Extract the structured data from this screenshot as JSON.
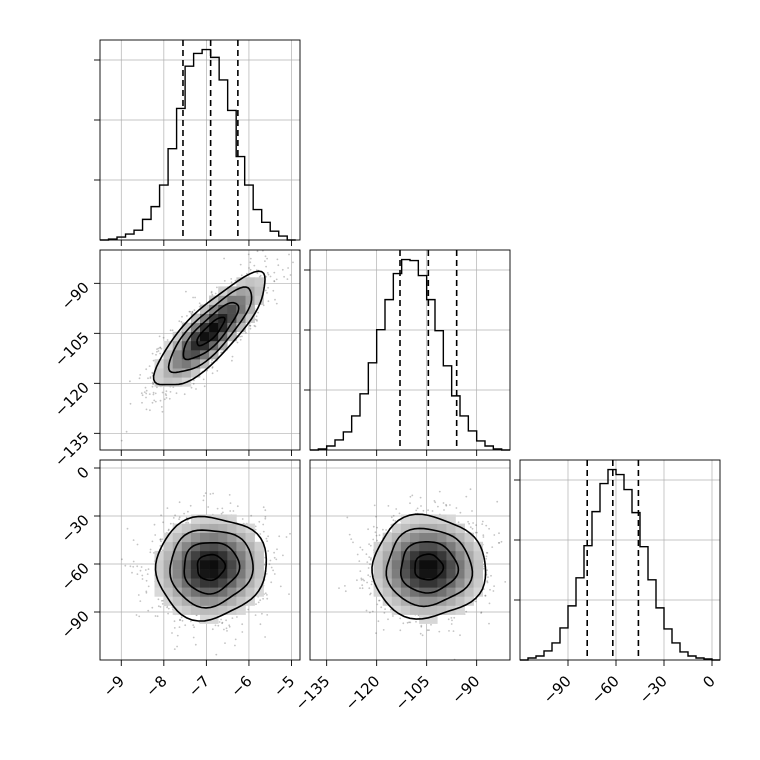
{
  "chart_data": {
    "type": "corner",
    "parameters": [
      {
        "range": [
          -9.5,
          -4.8
        ],
        "ticks": [
          -9,
          -8,
          -7,
          -6,
          -5
        ],
        "tick_labels": [
          "−9",
          "−8",
          "−7",
          "−6",
          "−5"
        ],
        "mean": -6.9,
        "sd": 0.65,
        "quantiles": [
          -7.55,
          -6.9,
          -6.26
        ]
      },
      {
        "range": [
          -140,
          -80
        ],
        "ticks": [
          -135,
          -120,
          -105,
          -90
        ],
        "tick_labels": [
          "−135",
          "−120",
          "−105",
          "−90"
        ],
        "mean": -104.5,
        "sd": 8.5,
        "quantiles": [
          -113,
          -104.5,
          -96
        ]
      },
      {
        "range": [
          -120,
          5
        ],
        "ticks": [
          -90,
          -60,
          -30,
          0
        ],
        "tick_labels": [
          "−90",
          "−60",
          "−30",
          "0"
        ],
        "y_ticks": [
          -90,
          -60,
          -30,
          0
        ],
        "y_tick_labels": [
          "−90",
          "−60",
          "−30",
          "0"
        ],
        "mean": -62,
        "sd": 16,
        "quantiles": [
          -78,
          -62,
          -46
        ]
      }
    ],
    "histograms": [
      {
        "param": 0,
        "bins": [
          -9.5,
          -9.3,
          -9.1,
          -8.9,
          -8.7,
          -8.5,
          -8.3,
          -8.1,
          -7.9,
          -7.7,
          -7.5,
          -7.3,
          -7.1,
          -6.9,
          -6.7,
          -6.5,
          -6.3,
          -6.1,
          -5.9,
          -5.7,
          -5.5,
          -5.3,
          -5.1,
          -4.9
        ],
        "counts": [
          0,
          1,
          3,
          6,
          10,
          21,
          34,
          56,
          93,
          134,
          177,
          190,
          194,
          186,
          163,
          132,
          85,
          56,
          31,
          18,
          9,
          4,
          0
        ]
      },
      {
        "param": 1,
        "bins": [
          -140,
          -137.5,
          -135,
          -132.5,
          -130,
          -127.5,
          -125,
          -122.5,
          -120,
          -117.5,
          -115,
          -112.5,
          -110,
          -107.5,
          -105,
          -102.5,
          -100,
          -97.5,
          -95,
          -92.5,
          -90,
          -87.5,
          -85,
          -82.5,
          -80
        ],
        "counts": [
          0,
          1,
          4,
          10,
          18,
          34,
          56,
          87,
          120,
          150,
          176,
          190,
          189,
          174,
          150,
          119,
          84,
          54,
          34,
          19,
          9,
          4,
          1,
          0
        ]
      },
      {
        "param": 2,
        "bins": [
          -120,
          -115,
          -110,
          -105,
          -100,
          -95,
          -90,
          -85,
          -80,
          -75,
          -70,
          -65,
          -60,
          -55,
          -50,
          -45,
          -40,
          -35,
          -30,
          -25,
          -20,
          -15,
          -10,
          -5,
          0,
          5
        ],
        "counts": [
          0,
          2,
          4,
          9,
          17,
          32,
          54,
          82,
          114,
          148,
          176,
          190,
          185,
          170,
          147,
          113,
          80,
          52,
          31,
          17,
          8,
          4,
          2,
          1,
          0
        ]
      }
    ],
    "pairs": [
      {
        "x_param": 0,
        "y_param": 1,
        "correlation": 0.82
      },
      {
        "x_param": 0,
        "y_param": 2,
        "correlation": 0.05
      },
      {
        "x_param": 1,
        "y_param": 2,
        "correlation": 0.0
      }
    ],
    "quantiles_shown": [
      0.16,
      0.5,
      0.84
    ],
    "grid": true
  }
}
